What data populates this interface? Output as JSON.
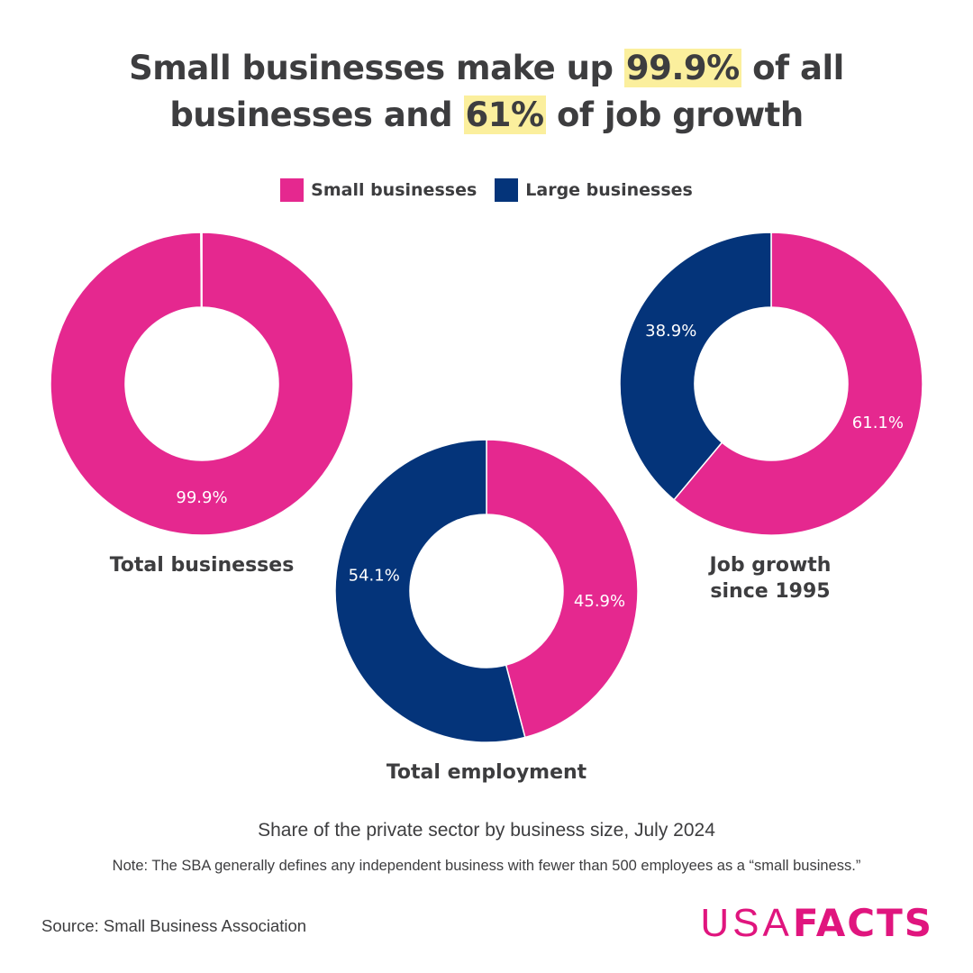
{
  "title": {
    "line1_pre": "Small businesses make up ",
    "line1_highlight": "99.9%",
    "line1_post": " of all",
    "line2_pre": "businesses and ",
    "line2_highlight": "61%",
    "line2_post": " of job growth"
  },
  "colors": {
    "small": "#e5288f",
    "large": "#04347a",
    "highlight": "#fbef9d",
    "text": "#3d3d3f",
    "brand": "#e0157e"
  },
  "legend": [
    {
      "label": "Small businesses",
      "color": "#e5288f"
    },
    {
      "label": "Large businesses",
      "color": "#04347a"
    }
  ],
  "chart_data": {
    "type": "pie",
    "variant": "donut",
    "title": "Small businesses make up 99.9% of all businesses and 61% of job growth",
    "subtitle": "Share of the private sector by business size, July 2024",
    "legend_position": "top-center",
    "series_names": [
      "Small businesses",
      "Large businesses"
    ],
    "charts": [
      {
        "name": "Total businesses",
        "values": [
          99.9,
          0.1
        ],
        "labels": [
          "99.9%",
          ""
        ]
      },
      {
        "name": "Total employment",
        "values": [
          45.9,
          54.1
        ],
        "labels": [
          "45.9%",
          "54.1%"
        ]
      },
      {
        "name": "Job growth since 1995",
        "values": [
          61.1,
          38.9
        ],
        "labels": [
          "61.1%",
          "38.9%"
        ]
      }
    ]
  },
  "captions": {
    "total_businesses": "Total businesses",
    "total_employment": "Total employment",
    "job_growth_line1": "Job growth",
    "job_growth_line2": "since 1995"
  },
  "subtitle": "Share of the private sector by business size, July 2024",
  "note": "Note: The SBA generally defines any independent business with fewer than 500 employees as a “small business.”",
  "source": "Source: Small Business Association",
  "logo": {
    "light": "USA",
    "bold": "FACTS"
  }
}
